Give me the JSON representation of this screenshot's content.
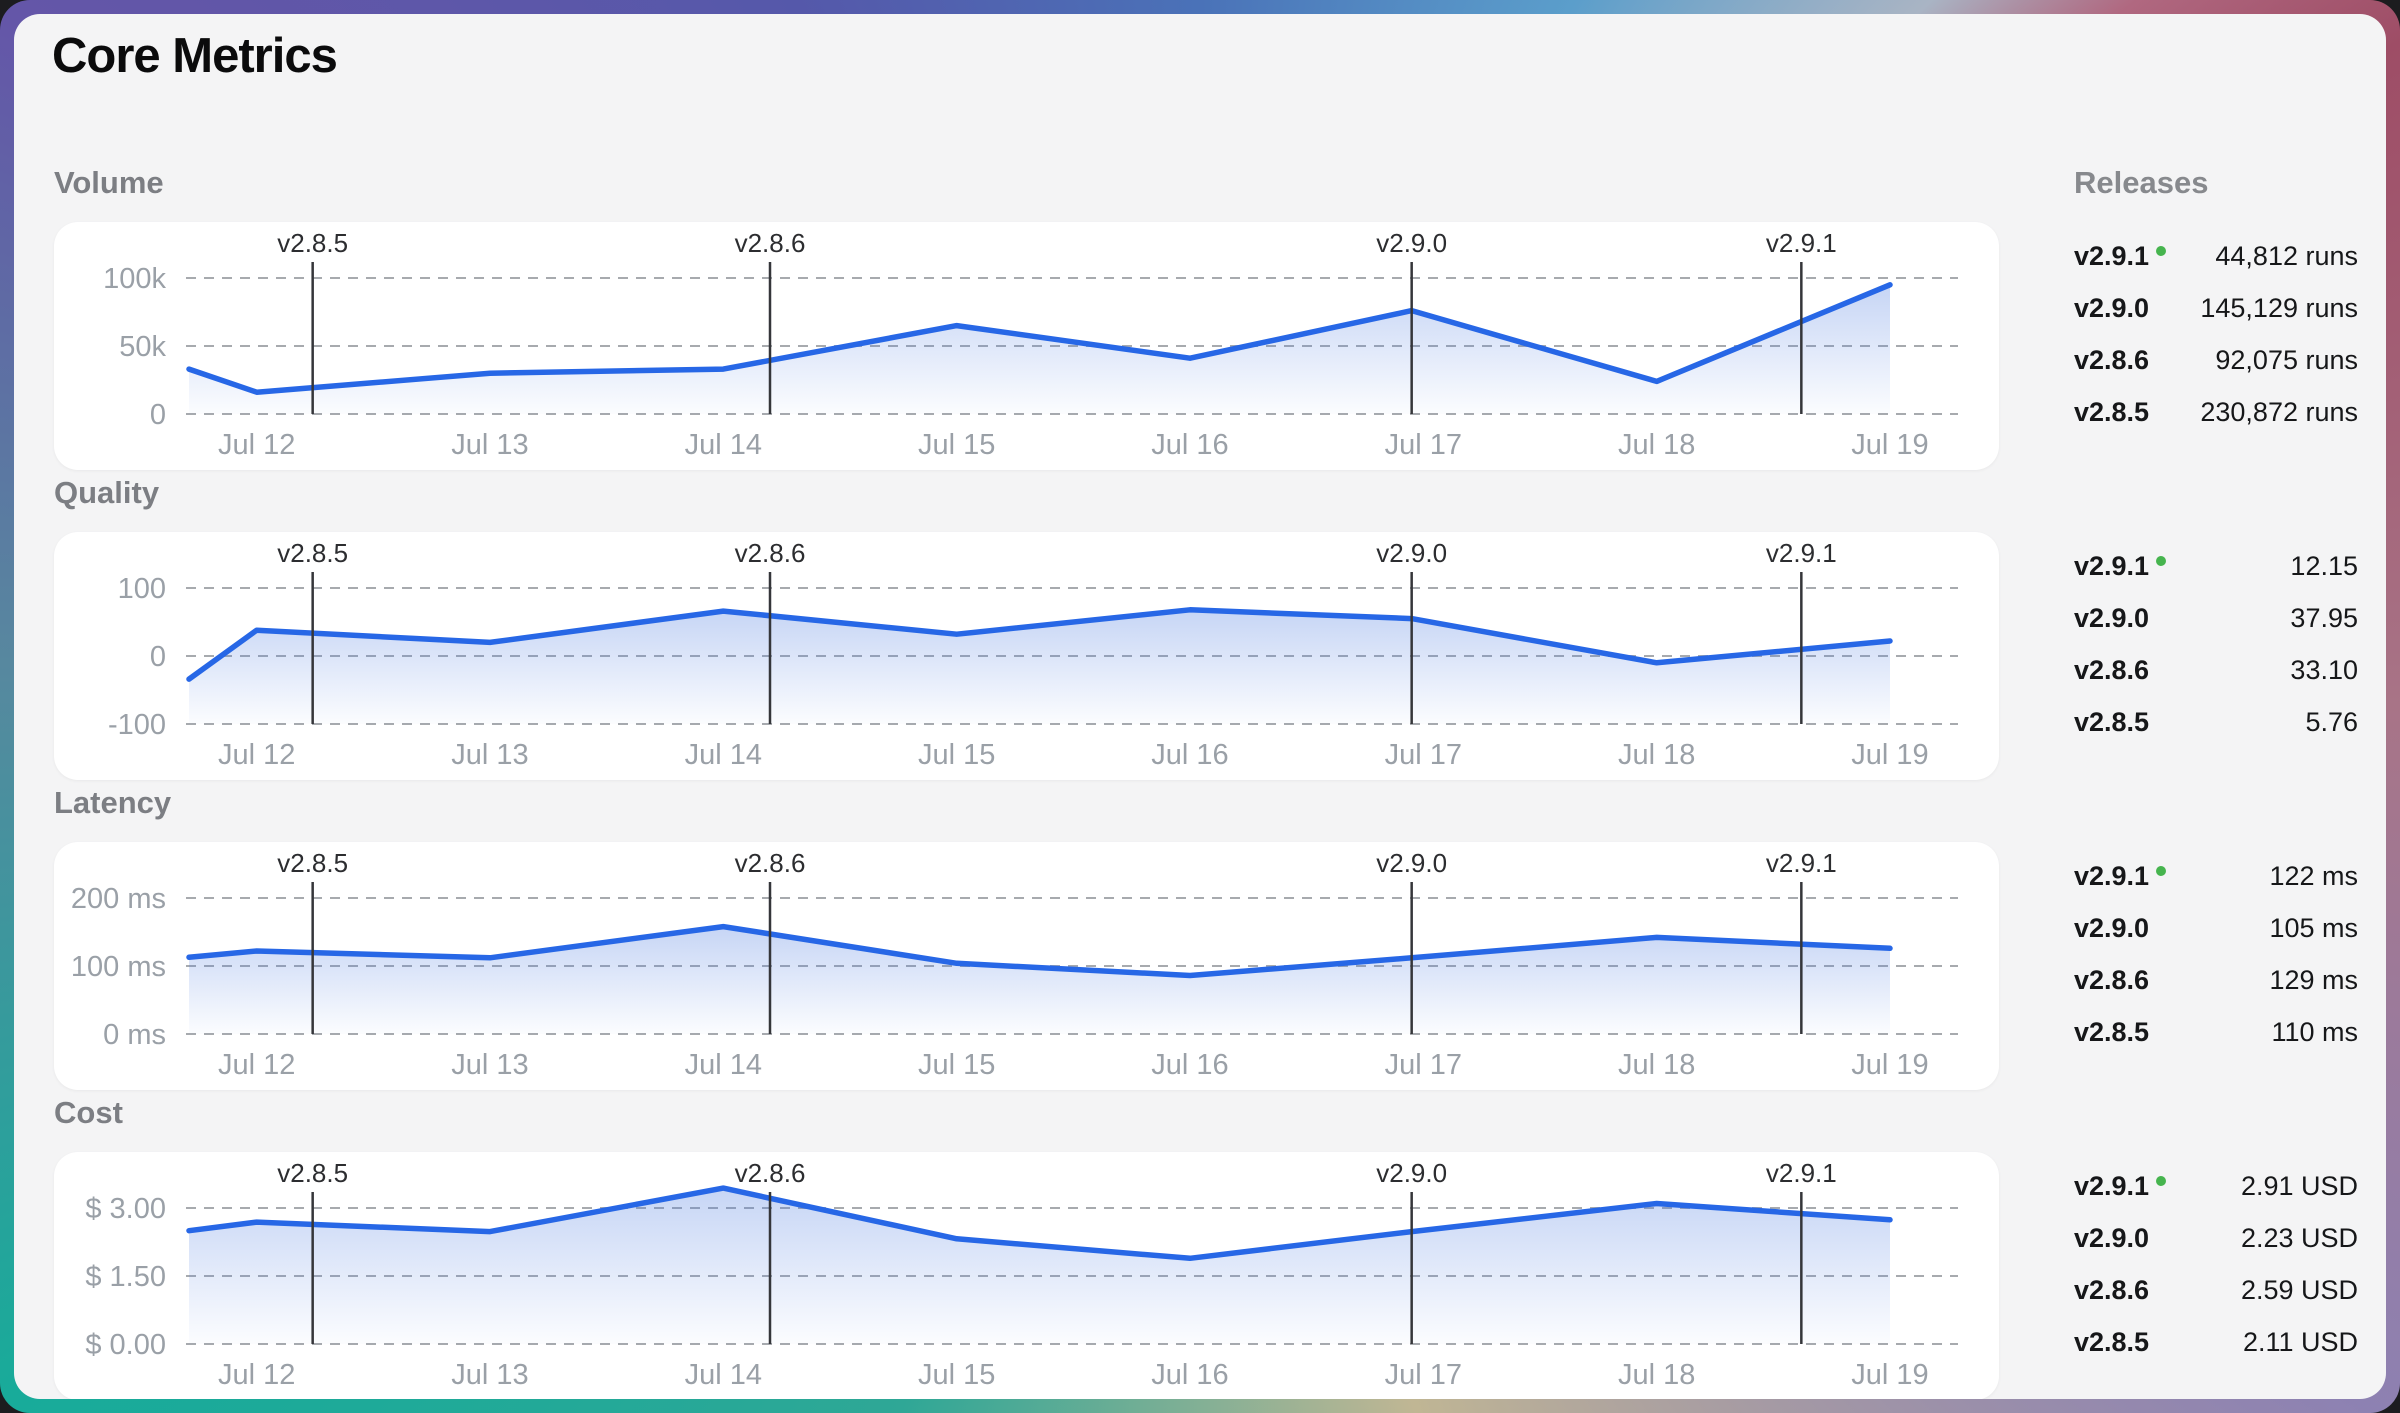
{
  "title": "Core Metrics",
  "releases_panel": {
    "header": "Releases"
  },
  "colors": {
    "line": "#2767e6",
    "area_fill": "#4d7ce0",
    "grid": "#a7aaae",
    "marker_line": "#35363a",
    "green_dot": "#46b44e"
  },
  "x_axis": {
    "tick_days": [
      12,
      13,
      14,
      15,
      16,
      17,
      18,
      19
    ],
    "tick_labels": [
      "Jul 12",
      "Jul 13",
      "Jul 14",
      "Jul 15",
      "Jul 16",
      "Jul 17",
      "Jul 18",
      "Jul 19"
    ]
  },
  "release_markers": [
    {
      "label": "v2.8.5",
      "day": 12.24
    },
    {
      "label": "v2.8.6",
      "day": 14.2
    },
    {
      "label": "v2.9.0",
      "day": 16.95
    },
    {
      "label": "v2.9.1",
      "day": 18.62
    }
  ],
  "chart_data": [
    {
      "type": "line",
      "title": "Volume",
      "unit": "runs",
      "x": [
        11.71,
        12,
        13,
        14,
        15,
        16,
        16.95,
        18,
        19
      ],
      "values": [
        33000,
        16000,
        30000,
        33000,
        65000,
        41000,
        76000,
        24000,
        95000
      ],
      "ylim": [
        0,
        100000
      ],
      "yticks": [
        {
          "value": 100000,
          "label": "100k"
        },
        {
          "value": 50000,
          "label": "50k"
        },
        {
          "value": 0,
          "label": "0"
        }
      ],
      "releases": [
        {
          "version": "v2.9.1",
          "value": "44,812 runs",
          "current": true
        },
        {
          "version": "v2.9.0",
          "value": "145,129 runs",
          "current": false
        },
        {
          "version": "v2.8.6",
          "value": "92,075 runs",
          "current": false
        },
        {
          "version": "v2.8.5",
          "value": "230,872 runs",
          "current": false
        }
      ]
    },
    {
      "type": "line",
      "title": "Quality",
      "unit": "",
      "x": [
        11.71,
        12,
        13,
        14,
        15,
        16,
        16.95,
        18,
        19
      ],
      "values": [
        -34,
        38,
        20,
        66,
        32,
        68,
        55,
        -10,
        22
      ],
      "ylim": [
        -100,
        100
      ],
      "yticks": [
        {
          "value": 100,
          "label": "100"
        },
        {
          "value": 0,
          "label": "0"
        },
        {
          "value": -100,
          "label": "-100"
        }
      ],
      "releases": [
        {
          "version": "v2.9.1",
          "value": "12.15",
          "current": true
        },
        {
          "version": "v2.9.0",
          "value": "37.95",
          "current": false
        },
        {
          "version": "v2.8.6",
          "value": "33.10",
          "current": false
        },
        {
          "version": "v2.8.5",
          "value": "5.76",
          "current": false
        }
      ]
    },
    {
      "type": "line",
      "title": "Latency",
      "unit": "ms",
      "x": [
        11.71,
        12,
        13,
        14,
        15,
        16,
        16.95,
        18,
        19
      ],
      "values": [
        113,
        122,
        112,
        158,
        104,
        86,
        112,
        142,
        126
      ],
      "ylim": [
        0,
        200
      ],
      "yticks": [
        {
          "value": 200,
          "label": "200 ms"
        },
        {
          "value": 100,
          "label": "100 ms"
        },
        {
          "value": 0,
          "label": "0 ms"
        }
      ],
      "releases": [
        {
          "version": "v2.9.1",
          "value": "122 ms",
          "current": true
        },
        {
          "version": "v2.9.0",
          "value": "105 ms",
          "current": false
        },
        {
          "version": "v2.8.6",
          "value": "129 ms",
          "current": false
        },
        {
          "version": "v2.8.5",
          "value": "110 ms",
          "current": false
        }
      ]
    },
    {
      "type": "line",
      "title": "Cost",
      "unit": "USD",
      "x": [
        11.71,
        12,
        13,
        14,
        15,
        16,
        16.95,
        18,
        19
      ],
      "values": [
        2.5,
        2.69,
        2.48,
        3.44,
        2.32,
        1.89,
        2.48,
        3.1,
        2.74
      ],
      "ylim": [
        0,
        3
      ],
      "yticks": [
        {
          "value": 3,
          "label": "$ 3.00"
        },
        {
          "value": 1.5,
          "label": "$ 1.50"
        },
        {
          "value": 0,
          "label": "$ 0.00"
        }
      ],
      "releases": [
        {
          "version": "v2.9.1",
          "value": "2.91 USD",
          "current": true
        },
        {
          "version": "v2.9.0",
          "value": "2.23 USD",
          "current": false
        },
        {
          "version": "v2.8.6",
          "value": "2.59 USD",
          "current": false
        },
        {
          "version": "v2.8.5",
          "value": "2.11 USD",
          "current": false
        }
      ]
    }
  ]
}
